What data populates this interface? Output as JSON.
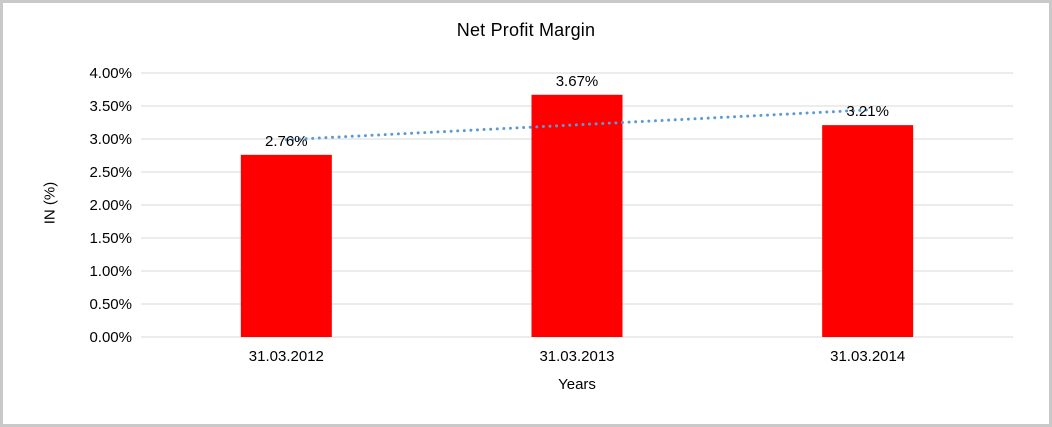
{
  "window": {
    "background_color": "#FFFFFF",
    "frame_border_color": "#C9C9C9"
  },
  "chart_data": {
    "type": "bar",
    "title": "Net Profit Margin",
    "xlabel": "Years",
    "ylabel": "IN (%)",
    "categories": [
      "31.03.2012",
      "31.03.2013",
      "31.03.2014"
    ],
    "values": [
      2.76,
      3.67,
      3.21
    ],
    "data_labels": [
      "2.76%",
      "3.67%",
      "3.21%"
    ],
    "y_ticks": [
      "0.00%",
      "0.50%",
      "1.00%",
      "1.50%",
      "2.00%",
      "2.50%",
      "3.00%",
      "3.50%",
      "4.00%"
    ],
    "ylim": [
      0,
      4
    ],
    "y_tick_step": 0.5,
    "grid": true,
    "legend": false,
    "bar_color": "#FF0000",
    "gridline_color": "#D9D9D9",
    "text_color": "#000000",
    "trendline": {
      "style": "dotted",
      "color": "#5B9BD5",
      "start_value": 2.99,
      "end_value": 3.44
    }
  }
}
